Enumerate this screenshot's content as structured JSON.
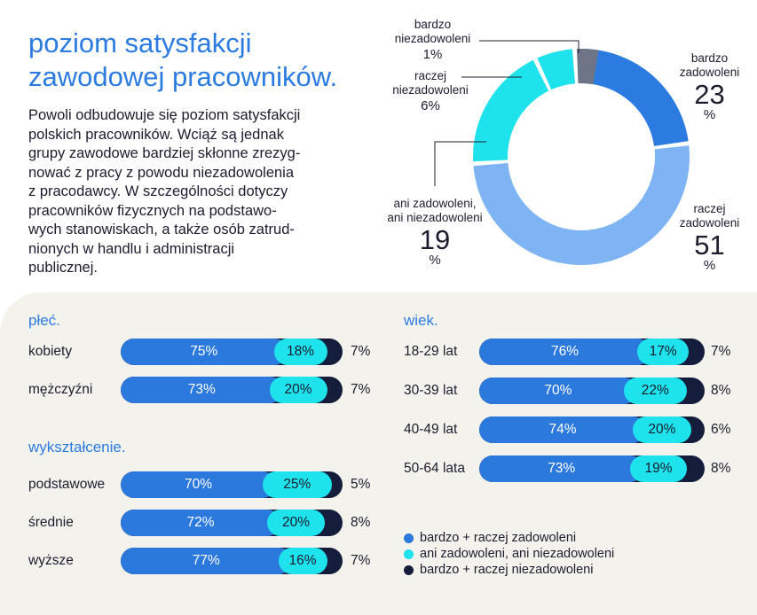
{
  "title_lines": [
    "poziom satysfakcji",
    "zawodowej pracowników."
  ],
  "intro_lines": [
    "Powoli odbudowuje się poziom satysfakcji",
    "polskich pracowników. Wciąż są jednak",
    "grupy zawodowe bardziej skłonne zrezyg-",
    "nować z pracy z powodu niezadowolenia",
    "z pracodawcy. W szczególności dotyczy",
    "pracowników fizycznych na podstawo-",
    "wych stanowiskach, a także osób zatrud-",
    "nionych w handlu i administracji",
    "publicznej."
  ],
  "colors": {
    "accent": "#2b7be0",
    "bardzo_zadowoleni": "#2c7be0",
    "raczej_zadowoleni": "#7eb4f4",
    "ani": "#1ee2ec",
    "raczej_niezadowoleni": "#1ee2ec",
    "bardzo_niezadowoleni": "#6d7587",
    "dark": "#141d3b",
    "panel": "#f4f2ec"
  },
  "chart_data": [
    {
      "type": "pie",
      "variant": "donut",
      "slices": [
        {
          "id": "bz",
          "label_lines": [
            "bardzo",
            "zadowoleni"
          ],
          "value": 23,
          "unit": "%"
        },
        {
          "id": "rz",
          "label_lines": [
            "raczej",
            "zadowoleni"
          ],
          "value": 51,
          "unit": "%"
        },
        {
          "id": "an",
          "label_lines": [
            "ani zadowoleni,",
            "ani niezadowoleni"
          ],
          "value": 19,
          "unit": "%"
        },
        {
          "id": "rn",
          "label_lines": [
            "raczej",
            "niezadowoleni"
          ],
          "value": 6,
          "unit": "%"
        },
        {
          "id": "bn",
          "label_lines": [
            "bardzo",
            "niezadowoleni"
          ],
          "value": 1,
          "unit": "%"
        }
      ]
    },
    {
      "type": "bar",
      "orientation": "horizontal",
      "stacked": true,
      "title": "płeć.",
      "categories": [
        "kobiety",
        "mężczyźni"
      ],
      "series": [
        {
          "name": "bardzo + raczej zadowoleni",
          "values": [
            75,
            73
          ]
        },
        {
          "name": "ani zadowoleni, ani niezadowoleni",
          "values": [
            18,
            20
          ]
        },
        {
          "name": "bardzo + raczej niezadowoleni",
          "values": [
            7,
            7
          ]
        }
      ]
    },
    {
      "type": "bar",
      "orientation": "horizontal",
      "stacked": true,
      "title": "wykształcenie.",
      "categories": [
        "podstawowe",
        "średnie",
        "wyższe"
      ],
      "series": [
        {
          "name": "bardzo + raczej zadowoleni",
          "values": [
            70,
            72,
            77
          ]
        },
        {
          "name": "ani zadowoleni, ani niezadowoleni",
          "values": [
            25,
            20,
            16
          ]
        },
        {
          "name": "bardzo + raczej niezadowoleni",
          "values": [
            5,
            8,
            7
          ]
        }
      ]
    },
    {
      "type": "bar",
      "orientation": "horizontal",
      "stacked": true,
      "title": "wiek.",
      "categories": [
        "18-29 lat",
        "30-39 lat",
        "40-49 lat",
        "50-64 lata"
      ],
      "series": [
        {
          "name": "bardzo + raczej zadowoleni",
          "values": [
            76,
            70,
            74,
            73
          ]
        },
        {
          "name": "ani zadowoleni, ani niezadowoleni",
          "values": [
            17,
            22,
            20,
            19
          ]
        },
        {
          "name": "bardzo + raczej niezadowoleni",
          "values": [
            7,
            8,
            6,
            8
          ]
        }
      ]
    }
  ],
  "legend": [
    {
      "label": "bardzo + raczej zadowoleni",
      "color": "#2c79de"
    },
    {
      "label": "ani zadowoleni, ani niezadowoleni",
      "color": "#1ee2ec"
    },
    {
      "label": "bardzo + raczej niezadowoleni",
      "color": "#141d3b"
    }
  ]
}
